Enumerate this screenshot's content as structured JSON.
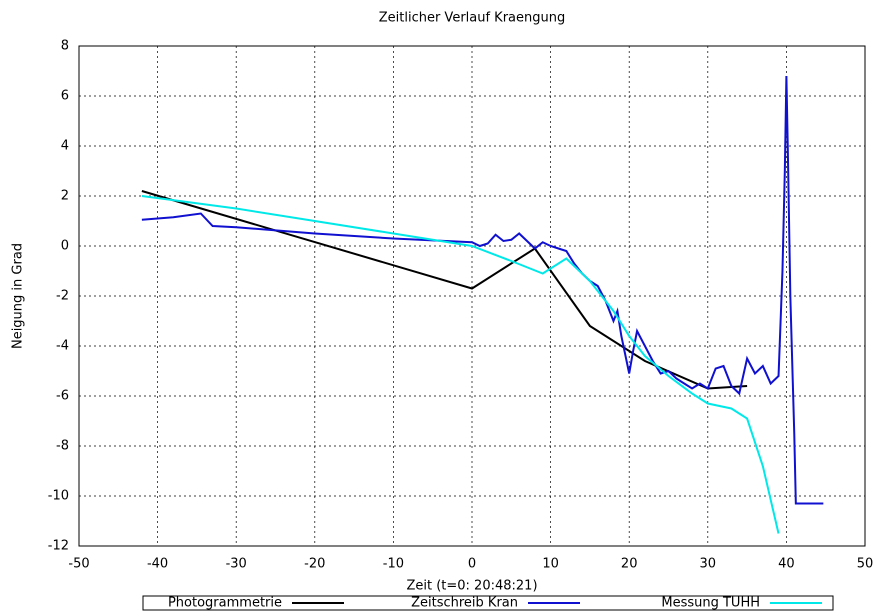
{
  "chart_data": {
    "type": "line",
    "title": "Zeitlicher Verlauf Kraengung",
    "x_label": "Zeit (t=0: 20:48:21)",
    "y_label": "Neigung in Grad",
    "xlim": [
      -50,
      50
    ],
    "xticks": [
      -50,
      -40,
      -30,
      -20,
      -10,
      0,
      10,
      20,
      30,
      40,
      50
    ],
    "ylim": [
      -12,
      8
    ],
    "yticks": [
      -12,
      -10,
      -8,
      -6,
      -4,
      -2,
      0,
      2,
      4,
      6,
      8
    ],
    "grid": true,
    "legend": "bottom",
    "series": [
      {
        "name": "Photogrammetrie",
        "color": "#000000",
        "x": [
          -42,
          0,
          8,
          15,
          22,
          30,
          35
        ],
        "values": [
          2.2,
          -1.7,
          -0.1,
          -3.2,
          -4.6,
          -5.7,
          -5.6
        ]
      },
      {
        "name": "Zeitschreib Kran",
        "color": "#1010d0",
        "x": [
          -42,
          -38,
          -34.5,
          -33,
          -30,
          -20,
          -10,
          0,
          1,
          2,
          3,
          4,
          5,
          6,
          7,
          8,
          9,
          10,
          11,
          12,
          13,
          14,
          15,
          16,
          17,
          18,
          18.5,
          19,
          20,
          20.5,
          21,
          22,
          23,
          24,
          25,
          26,
          27,
          28,
          29,
          30,
          31,
          32,
          33,
          34,
          35,
          36,
          37,
          38,
          39,
          39.5,
          39.8,
          40,
          40.2,
          40.5,
          41,
          41.2,
          44.7
        ],
        "values": [
          1.05,
          1.15,
          1.3,
          0.8,
          0.75,
          0.5,
          0.3,
          0.15,
          0,
          0.1,
          0.45,
          0.2,
          0.25,
          0.5,
          0.2,
          -0.1,
          0.15,
          0,
          -0.1,
          -0.2,
          -0.7,
          -1.1,
          -1.4,
          -1.6,
          -2.2,
          -3.0,
          -2.6,
          -3.6,
          -5.1,
          -4.2,
          -3.4,
          -4.0,
          -4.6,
          -5.1,
          -5.0,
          -5.3,
          -5.5,
          -5.7,
          -5.5,
          -5.7,
          -4.9,
          -4.8,
          -5.6,
          -5.9,
          -4.5,
          -5.1,
          -4.8,
          -5.5,
          -5.2,
          -1,
          3,
          6.8,
          3.5,
          -2,
          -7.5,
          -10.3,
          -10.3
        ]
      },
      {
        "name": "Messung TUHH",
        "color": "#00e8e8",
        "x": [
          -42,
          -30,
          -20,
          -10,
          0,
          5,
          9,
          12,
          15,
          18,
          20,
          22,
          25,
          28,
          30,
          33,
          35,
          37,
          39
        ],
        "values": [
          2.0,
          1.5,
          1.0,
          0.5,
          0,
          -0.6,
          -1.1,
          -0.5,
          -1.4,
          -2.6,
          -3.6,
          -4.4,
          -5.2,
          -5.9,
          -6.3,
          -6.5,
          -6.9,
          -8.8,
          -11.5
        ]
      }
    ]
  }
}
